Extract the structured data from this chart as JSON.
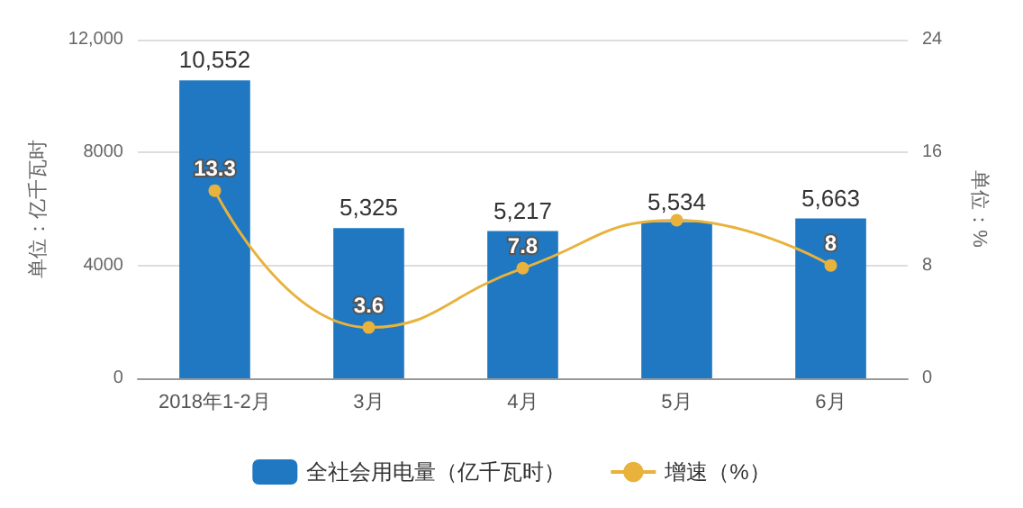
{
  "chart_data": {
    "type": "bar",
    "categories": [
      "2018年1-2月",
      "3月",
      "4月",
      "5月",
      "6月"
    ],
    "series": [
      {
        "name": "全社会用电量（亿千瓦时）",
        "color": "#1f78c1",
        "values": [
          10552,
          5325,
          5217,
          5534,
          5663
        ],
        "value_labels": [
          "10,552",
          "5,325",
          "5,217",
          "5,534",
          "5,663"
        ]
      },
      {
        "name": "增速（%）",
        "type": "line",
        "axis": "y2",
        "color": "#e8b23c",
        "values": [
          13.3,
          3.6,
          7.8,
          11.2,
          8
        ],
        "value_labels": [
          "13.3",
          "3.6",
          "7.8",
          null,
          "8"
        ]
      }
    ],
    "ylabel": "单位：亿千瓦时",
    "y2label": "单位：%",
    "ylim": [
      0,
      12000
    ],
    "yticks": [
      0,
      4000,
      8000,
      {
        "value": 12000,
        "label": "12,000"
      }
    ],
    "y2lim": [
      0,
      24
    ],
    "y2ticks": [
      0,
      8,
      16,
      24
    ],
    "grid": "y",
    "legend": "bottom",
    "marker": "circle"
  }
}
